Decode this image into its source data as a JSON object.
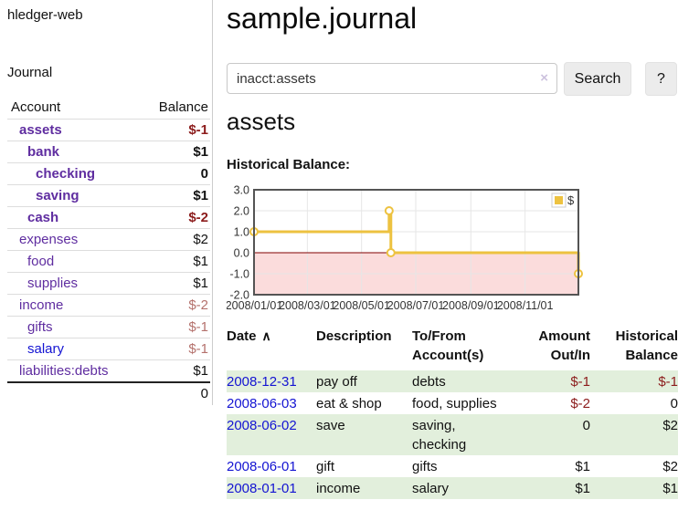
{
  "app": {
    "title": "hledger-web",
    "nav_journal": "Journal"
  },
  "sidebar": {
    "accounts_header": {
      "account": "Account",
      "balance": "Balance"
    },
    "accounts": [
      {
        "name": "assets",
        "indent": 1,
        "bold": true,
        "balance": "$-1",
        "negative": "strong"
      },
      {
        "name": "bank",
        "indent": 2,
        "bold": true,
        "balance": "$1",
        "negative": "none"
      },
      {
        "name": "checking",
        "indent": 3,
        "bold": true,
        "balance": "0",
        "negative": "none"
      },
      {
        "name": "saving",
        "indent": 3,
        "bold": true,
        "balance": "$1",
        "negative": "none"
      },
      {
        "name": "cash",
        "indent": 2,
        "bold": true,
        "balance": "$-2",
        "negative": "strong"
      },
      {
        "name": "expenses",
        "indent": 1,
        "bold": false,
        "balance": "$2",
        "negative": "none"
      },
      {
        "name": "food",
        "indent": 2,
        "bold": false,
        "balance": "$1",
        "negative": "none"
      },
      {
        "name": "supplies",
        "indent": 2,
        "bold": false,
        "balance": "$1",
        "negative": "none"
      },
      {
        "name": "income",
        "indent": 1,
        "bold": false,
        "balance": "$-2",
        "negative": "muted"
      },
      {
        "name": "gifts",
        "indent": 2,
        "bold": false,
        "balance": "$-1",
        "negative": "muted"
      },
      {
        "name": "salary",
        "indent": 2,
        "bold": false,
        "balance": "$-1",
        "negative": "muted",
        "link_color": "blue"
      },
      {
        "name": "liabilities:debts",
        "indent": 1,
        "bold": false,
        "balance": "$1",
        "negative": "none"
      }
    ],
    "total": "0"
  },
  "header": {
    "title": "sample.journal"
  },
  "search": {
    "value": "inacct:assets",
    "clear_icon": "×",
    "button": "Search",
    "help_button": "?"
  },
  "account_page": {
    "title": "assets",
    "chart_label": "Historical Balance:"
  },
  "chart_data": {
    "type": "line",
    "style": "step-after",
    "title": "Historical Balance",
    "x_range": [
      "2008-01-01",
      "2008-12-31"
    ],
    "ylim": [
      -2,
      3
    ],
    "y_ticks": [
      3.0,
      2.0,
      1.0,
      0.0,
      -1.0,
      -2.0
    ],
    "x_ticks": [
      "2008/01/01",
      "2008/03/01",
      "2008/05/01",
      "2008/07/01",
      "2008/09/01",
      "2008/11/01"
    ],
    "series": [
      {
        "name": "$",
        "color": "#edc240",
        "points": [
          [
            "2008-01-01",
            1
          ],
          [
            "2008-06-01",
            2
          ],
          [
            "2008-06-03",
            0
          ],
          [
            "2008-12-31",
            -1
          ]
        ]
      }
    ],
    "legend": {
      "label": "$",
      "position": "top-right"
    },
    "negative_region_color": "#fbdcdc",
    "zero_line_color": "#800000",
    "grid": true
  },
  "register": {
    "columns": [
      {
        "label": "Date",
        "align": "left",
        "sortable": true
      },
      {
        "label": "Description",
        "align": "left"
      },
      {
        "label": "To/From\nAccount(s)",
        "align": "left"
      },
      {
        "label": "Amount\nOut/In",
        "align": "right"
      },
      {
        "label": "Historical\nBalance",
        "align": "right"
      }
    ],
    "sort_icon": "∧",
    "rows": [
      {
        "date": "2008-12-31",
        "description": "pay off",
        "accounts": "debts",
        "amount": "$-1",
        "balance": "$-1",
        "amount_negative": true,
        "balance_negative": true,
        "shaded": true
      },
      {
        "date": "2008-06-03",
        "description": "eat & shop",
        "accounts": "food, supplies",
        "amount": "$-2",
        "balance": "0",
        "amount_negative": true,
        "balance_negative": false,
        "shaded": false
      },
      {
        "date": "2008-06-02",
        "description": "save",
        "accounts": "saving,\nchecking",
        "amount": "0",
        "balance": "$2",
        "amount_negative": false,
        "balance_negative": false,
        "shaded": true
      },
      {
        "date": "2008-06-01",
        "description": "gift",
        "accounts": "gifts",
        "amount": "$1",
        "balance": "$2",
        "amount_negative": false,
        "balance_negative": false,
        "shaded": false
      },
      {
        "date": "2008-01-01",
        "description": "income",
        "accounts": "salary",
        "amount": "$1",
        "balance": "$1",
        "amount_negative": false,
        "balance_negative": false,
        "shaded": true
      }
    ]
  },
  "colors": {
    "link_purple": "#5f2da0",
    "link_blue": "#1414d2",
    "neg_strong": "#8c1c1c",
    "neg_muted": "#b4716c",
    "text": "#111111",
    "row_green": "#e2efdc",
    "chart_grid": "#e6e6e6",
    "chart_border": "#545454",
    "chart_tick_text": "#333333"
  }
}
